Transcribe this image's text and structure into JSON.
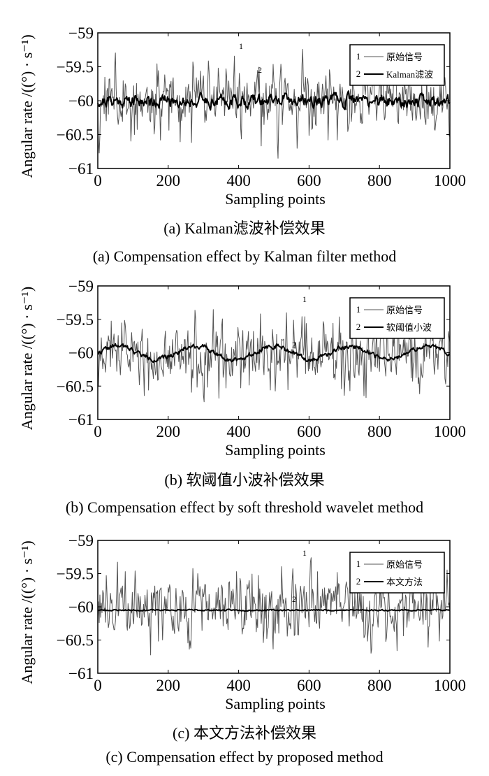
{
  "chart_data": [
    {
      "type": "line",
      "panel": "a",
      "xlabel": "Sampling points",
      "ylabel": "Angular rate /((°) · s⁻¹)",
      "xlim": [
        0,
        1000
      ],
      "ylim": [
        -61,
        -59
      ],
      "xticks": [
        "0",
        "200",
        "400",
        "600",
        "800",
        "1000"
      ],
      "yticks": [
        "−59",
        "−59.5",
        "−60",
        "−60.5",
        "−61"
      ],
      "legend_position": "top-right",
      "series": [
        {
          "marker": "1",
          "name": "原始信号",
          "color": "#555555",
          "mean": -60.0,
          "amplitude": 0.45,
          "seed": 11
        },
        {
          "marker": "2",
          "name": "Kalman滤波",
          "color": "#000000",
          "mean": -60.0,
          "amplitude": 0.18,
          "seed": 21
        }
      ],
      "caption_cn": "(a) Kalman滤波补偿效果",
      "caption_en": "(a) Compensation effect by Kalman filter method"
    },
    {
      "type": "line",
      "panel": "b",
      "xlabel": "Sampling points",
      "ylabel": "Angular rate /((°) · s⁻¹)",
      "xlim": [
        0,
        1000
      ],
      "ylim": [
        -61,
        -59
      ],
      "xticks": [
        "0",
        "200",
        "400",
        "600",
        "800",
        "1000"
      ],
      "yticks": [
        "−59",
        "−59.5",
        "−60",
        "−60.5",
        "−61"
      ],
      "legend_position": "top-right",
      "series": [
        {
          "marker": "1",
          "name": "原始信号",
          "color": "#555555",
          "mean": -60.0,
          "amplitude": 0.45,
          "seed": 12
        },
        {
          "marker": "2",
          "name": "软阈值小波",
          "color": "#000000",
          "mean": -60.0,
          "amplitude": 0.07,
          "seed": 22
        }
      ],
      "caption_cn": "(b) 软阈值小波补偿效果",
      "caption_en": "(b) Compensation effect by soft threshold wavelet method"
    },
    {
      "type": "line",
      "panel": "c",
      "xlabel": "Sampling points",
      "ylabel": "Angular rate /((°) · s⁻¹)",
      "xlim": [
        0,
        1000
      ],
      "ylim": [
        -61,
        -59
      ],
      "xticks": [
        "0",
        "200",
        "400",
        "600",
        "800",
        "1000"
      ],
      "yticks": [
        "−59",
        "−59.5",
        "−60",
        "−60.5",
        "−61"
      ],
      "legend_position": "top-right",
      "series": [
        {
          "marker": "1",
          "name": "原始信号",
          "color": "#555555",
          "mean": -60.0,
          "amplitude": 0.45,
          "seed": 13
        },
        {
          "marker": "2",
          "name": "本文方法",
          "color": "#000000",
          "mean": -60.05,
          "amplitude": 0.02,
          "seed": 23
        }
      ],
      "caption_cn": "(c) 本文方法补偿效果",
      "caption_en": "(c) Compensation effect by proposed method"
    }
  ]
}
